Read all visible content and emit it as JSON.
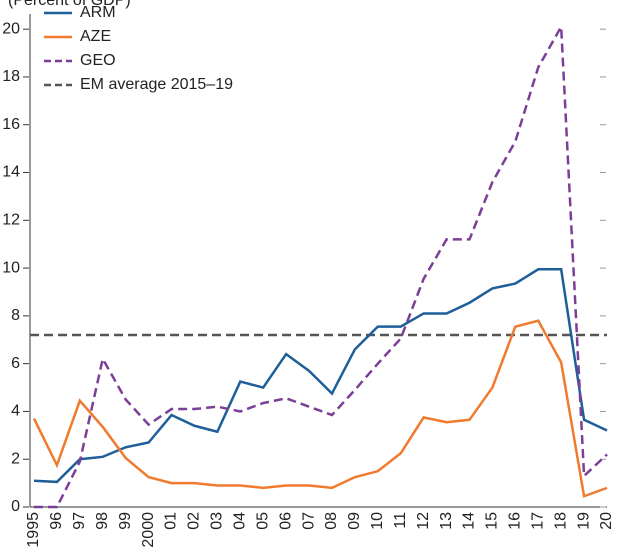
{
  "chart_data": {
    "type": "line",
    "subtitle": "(Percent of GDP)",
    "categories": [
      "1995",
      "96",
      "97",
      "98",
      "99",
      "2000",
      "01",
      "02",
      "03",
      "04",
      "05",
      "06",
      "07",
      "08",
      "09",
      "10",
      "11",
      "12",
      "13",
      "14",
      "15",
      "16",
      "17",
      "18",
      "19",
      "20"
    ],
    "series": [
      {
        "name": "ARM",
        "color": "#1f5f99",
        "dash": false,
        "values": [
          1.1,
          1.05,
          2.0,
          2.1,
          2.5,
          2.7,
          3.85,
          3.4,
          3.15,
          5.25,
          5.0,
          6.4,
          5.7,
          4.75,
          6.6,
          7.55,
          7.55,
          8.1,
          8.1,
          8.55,
          9.15,
          9.35,
          9.95,
          9.95,
          3.65,
          3.2
        ]
      },
      {
        "name": "AZE",
        "color": "#f07a2e",
        "dash": false,
        "values": [
          3.7,
          1.75,
          4.45,
          3.35,
          2.05,
          1.25,
          1.0,
          1.0,
          0.9,
          0.9,
          0.8,
          0.9,
          0.9,
          0.8,
          1.25,
          1.5,
          2.25,
          3.75,
          3.55,
          3.65,
          5.0,
          7.55,
          7.8,
          6.05,
          0.45,
          0.8
        ]
      },
      {
        "name": "GEO",
        "color": "#7b3f98",
        "dash": true,
        "values": [
          0,
          0,
          1.9,
          6.2,
          4.5,
          3.45,
          4.1,
          4.1,
          4.2,
          4.0,
          4.35,
          4.55,
          4.2,
          3.85,
          4.9,
          6.0,
          7.05,
          9.55,
          11.2,
          11.2,
          13.6,
          15.3,
          18.4,
          20.1,
          1.3,
          2.2
        ]
      }
    ],
    "reference_lines": [
      {
        "name": "EM average 2015–19",
        "value": 7.2,
        "color": "#555555",
        "dash": true
      }
    ],
    "ylim": [
      0,
      20.3
    ],
    "yticks": [
      0,
      2,
      4,
      6,
      8,
      10,
      12,
      14,
      16,
      18,
      20
    ],
    "grid": false,
    "legend": "upper left"
  }
}
